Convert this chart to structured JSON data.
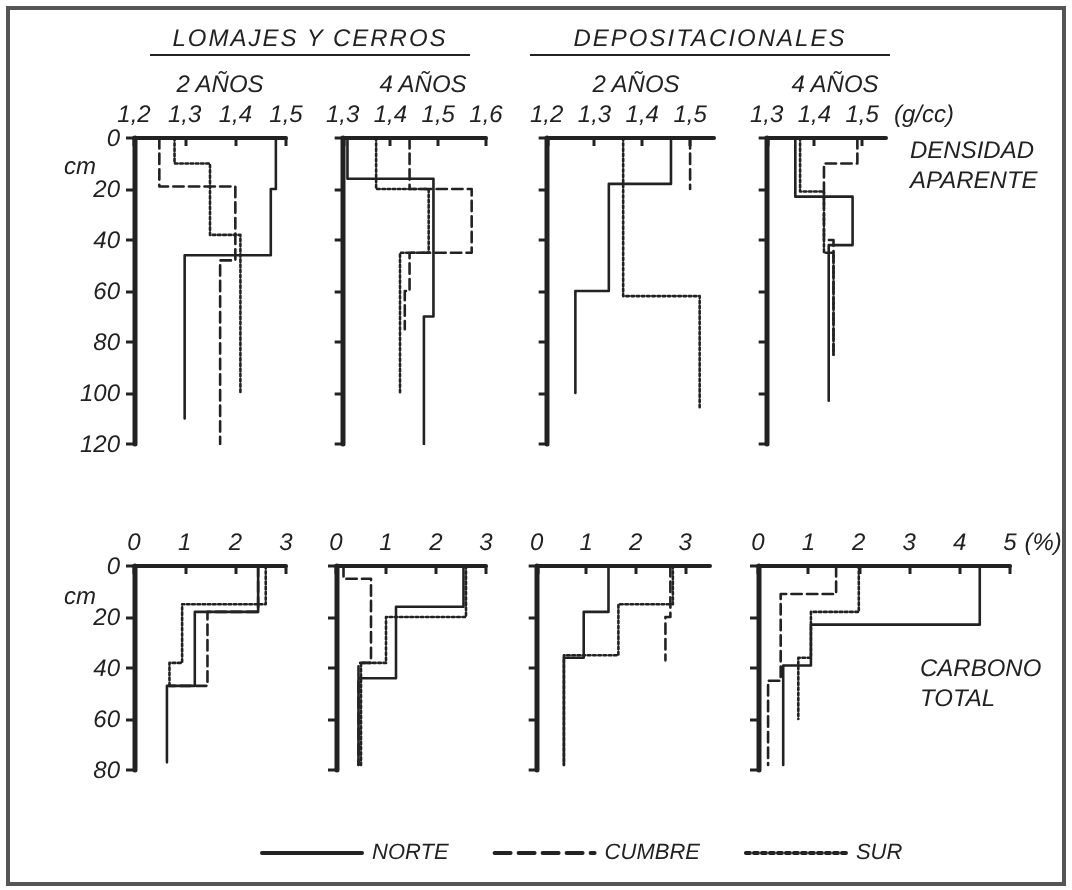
{
  "chart_data": [
    {
      "type": "line",
      "title": "2 AÑOS",
      "ylabel": "cm",
      "annotations": [
        "LOMAJES Y CERROS"
      ],
      "xlim": [
        1.2,
        1.5
      ],
      "xticks": [
        {
          "value": 1.2,
          "label": "1,2"
        },
        {
          "value": 1.3,
          "label": "1,3"
        },
        {
          "value": 1.4,
          "label": "1,4"
        },
        {
          "value": 1.5,
          "label": "1,5"
        }
      ],
      "ylim": [
        120,
        0
      ],
      "yticks": [
        0,
        20,
        40,
        60,
        80,
        100,
        120
      ],
      "series": [
        {
          "color": "#222222",
          "line_style": "solid",
          "x": [
            1.48,
            1.48,
            1.47,
            1.47,
            1.3,
            1.3
          ],
          "values": [
            0,
            20,
            20,
            46,
            46,
            110
          ]
        },
        {
          "color": "#222222",
          "line_style": "dashed",
          "x": [
            1.25,
            1.25,
            1.4,
            1.4,
            1.37,
            1.37
          ],
          "values": [
            0,
            19,
            19,
            48,
            48,
            120
          ]
        },
        {
          "color": "#222222",
          "line_style": "dotted",
          "x": [
            1.28,
            1.28,
            1.35,
            1.35,
            1.41,
            1.41
          ],
          "values": [
            0,
            10,
            10,
            38,
            38,
            100
          ]
        }
      ]
    },
    {
      "type": "line",
      "title": "4 AÑOS",
      "tick_labels": "x",
      "xlim": [
        1.3,
        1.6
      ],
      "xticks": [
        {
          "value": 1.3,
          "label": "1,3"
        },
        {
          "value": 1.4,
          "label": "1,4"
        },
        {
          "value": 1.5,
          "label": "1,5"
        },
        {
          "value": 1.6,
          "label": "1,6"
        }
      ],
      "ylim": [
        120,
        0
      ],
      "yticks": [
        0,
        20,
        40,
        60,
        80,
        100,
        120
      ],
      "series": [
        {
          "color": "#222222",
          "line_style": "solid",
          "x": [
            1.31,
            1.31,
            1.49,
            1.49,
            1.47,
            1.47
          ],
          "values": [
            0,
            16,
            16,
            70,
            70,
            120
          ]
        },
        {
          "color": "#222222",
          "line_style": "dashed",
          "x": [
            1.44,
            1.44,
            1.57,
            1.57,
            1.44,
            1.44,
            1.43,
            1.43
          ],
          "values": [
            0,
            20,
            20,
            45,
            45,
            60,
            60,
            75
          ]
        },
        {
          "color": "#222222",
          "line_style": "dotted",
          "x": [
            1.37,
            1.37,
            1.48,
            1.48,
            1.42,
            1.42
          ],
          "values": [
            0,
            20,
            20,
            45,
            45,
            100
          ]
        }
      ]
    },
    {
      "type": "line",
      "title": "2 AÑOS",
      "tick_labels": "x",
      "annotations": [
        "DEPOSITACIONALES"
      ],
      "xlim": [
        1.2,
        1.55
      ],
      "xticks": [
        {
          "value": 1.2,
          "label": "1,2"
        },
        {
          "value": 1.3,
          "label": "1,3"
        },
        {
          "value": 1.4,
          "label": "1,4"
        },
        {
          "value": 1.5,
          "label": "1,5"
        }
      ],
      "ylim": [
        120,
        0
      ],
      "yticks": [
        0,
        20,
        40,
        60,
        80,
        100,
        120
      ],
      "series": [
        {
          "color": "#222222",
          "line_style": "solid",
          "x": [
            1.46,
            1.46,
            1.33,
            1.33,
            1.26,
            1.26
          ],
          "values": [
            0,
            18,
            18,
            60,
            60,
            100
          ]
        },
        {
          "color": "#222222",
          "line_style": "dashed",
          "x": [
            1.5,
            1.5
          ],
          "values": [
            0,
            20
          ]
        },
        {
          "color": "#222222",
          "line_style": "dotted",
          "x": [
            1.36,
            1.36,
            1.52,
            1.52
          ],
          "values": [
            0,
            62,
            62,
            106
          ]
        }
      ]
    },
    {
      "type": "line",
      "title": "4 AÑOS",
      "xlabel": "(g/cc)",
      "tick_labels": "x",
      "annotations": [
        "DENSIDAD APARENTE"
      ],
      "xlim": [
        1.3,
        1.55
      ],
      "xticks": [
        {
          "value": 1.3,
          "label": "1,3"
        },
        {
          "value": 1.4,
          "label": "1,4"
        },
        {
          "value": 1.5,
          "label": "1,5"
        }
      ],
      "ylim": [
        120,
        0
      ],
      "yticks": [
        0,
        20,
        40,
        60,
        80,
        100,
        120
      ],
      "series": [
        {
          "color": "#222222",
          "line_style": "solid",
          "x": [
            1.36,
            1.36,
            1.48,
            1.48,
            1.43,
            1.43
          ],
          "values": [
            0,
            23,
            23,
            42,
            42,
            103
          ]
        },
        {
          "color": "#222222",
          "line_style": "dashed",
          "x": [
            1.49,
            1.49,
            1.42,
            1.42,
            1.44,
            1.44
          ],
          "values": [
            0,
            10,
            10,
            40,
            40,
            85
          ]
        },
        {
          "color": "#222222",
          "line_style": "dotted",
          "x": [
            1.37,
            1.37,
            1.42,
            1.42,
            1.44,
            1.44
          ],
          "values": [
            0,
            21,
            21,
            45,
            45,
            85
          ]
        }
      ]
    },
    {
      "type": "line",
      "ylabel": "cm",
      "legend": "bottom",
      "xlim": [
        0,
        3
      ],
      "xticks": [
        0,
        1,
        2,
        3
      ],
      "ylim": [
        80,
        0
      ],
      "yticks": [
        0,
        20,
        40,
        60,
        80
      ],
      "series": [
        {
          "name": "NORTE",
          "color": "#222222",
          "line_style": "solid",
          "x": [
            2.45,
            2.45,
            1.2,
            1.2,
            0.65,
            0.65
          ],
          "values": [
            0,
            18,
            18,
            47,
            47,
            77
          ]
        },
        {
          "name": "CUMBRE",
          "color": "#222222",
          "line_style": "dashed",
          "x": [
            2.45,
            2.45,
            1.45,
            1.45,
            0.7
          ],
          "values": [
            0,
            18,
            18,
            47,
            47
          ]
        },
        {
          "name": "SUR",
          "color": "#222222",
          "line_style": "dotted",
          "x": [
            2.6,
            2.6,
            0.95,
            0.95,
            0.7,
            0.7
          ],
          "values": [
            0,
            15,
            15,
            38,
            38,
            47
          ]
        }
      ]
    },
    {
      "type": "line",
      "tick_labels": "x",
      "xlim": [
        0,
        3
      ],
      "xticks": [
        0,
        1,
        2,
        3
      ],
      "ylim": [
        80,
        0
      ],
      "yticks": [
        0,
        20,
        40,
        60,
        80
      ],
      "series": [
        {
          "color": "#222222",
          "line_style": "solid",
          "x": [
            2.55,
            2.55,
            1.2,
            1.2,
            0.45,
            0.45
          ],
          "values": [
            0,
            16,
            16,
            44,
            44,
            78
          ]
        },
        {
          "color": "#222222",
          "line_style": "dashed",
          "x": [
            0.15,
            0.15,
            0.7,
            0.7,
            0.45,
            0.45
          ],
          "values": [
            0,
            5,
            5,
            38,
            38,
            78
          ]
        },
        {
          "color": "#222222",
          "line_style": "dotted",
          "x": [
            2.6,
            2.6,
            1.0,
            1.0,
            0.5,
            0.5
          ],
          "values": [
            0,
            20,
            20,
            38,
            38,
            78
          ]
        }
      ]
    },
    {
      "type": "line",
      "tick_labels": "x",
      "xlim": [
        0,
        3.5
      ],
      "xticks": [
        0,
        1,
        2,
        3
      ],
      "ylim": [
        80,
        0
      ],
      "yticks": [
        0,
        20,
        40,
        60,
        80
      ],
      "series": [
        {
          "color": "#222222",
          "line_style": "solid",
          "x": [
            1.45,
            1.45,
            0.95,
            0.95,
            0.55,
            0.55
          ],
          "values": [
            0,
            18,
            18,
            36,
            36,
            78
          ]
        },
        {
          "color": "#222222",
          "line_style": "dashed",
          "x": [
            2.7,
            2.7,
            2.6,
            2.6
          ],
          "values": [
            0,
            20,
            20,
            37
          ]
        },
        {
          "color": "#222222",
          "line_style": "dotted",
          "x": [
            2.75,
            2.75,
            1.65,
            1.65,
            0.55,
            0.55
          ],
          "values": [
            0,
            15,
            15,
            35,
            35,
            78
          ]
        }
      ]
    },
    {
      "type": "line",
      "xlabel": "(%)",
      "tick_labels": "x",
      "annotations": [
        "CARBONO TOTAL"
      ],
      "xlim": [
        0,
        5
      ],
      "xticks": [
        0,
        1,
        2,
        3,
        4,
        5
      ],
      "ylim": [
        80,
        0
      ],
      "yticks": [
        0,
        20,
        40,
        60,
        80
      ],
      "series": [
        {
          "color": "#222222",
          "line_style": "solid",
          "x": [
            4.4,
            4.4,
            1.05,
            1.05,
            0.5,
            0.5
          ],
          "values": [
            0,
            23,
            23,
            39,
            39,
            78
          ]
        },
        {
          "color": "#222222",
          "line_style": "dashed",
          "x": [
            1.55,
            1.55,
            0.45,
            0.45,
            0.2,
            0.2
          ],
          "values": [
            0,
            11,
            11,
            45,
            45,
            78
          ]
        },
        {
          "color": "#222222",
          "line_style": "dotted",
          "x": [
            2.0,
            2.0,
            1.05,
            1.05,
            0.8,
            0.8
          ],
          "values": [
            0,
            18,
            18,
            36,
            36,
            60
          ]
        }
      ]
    }
  ]
}
